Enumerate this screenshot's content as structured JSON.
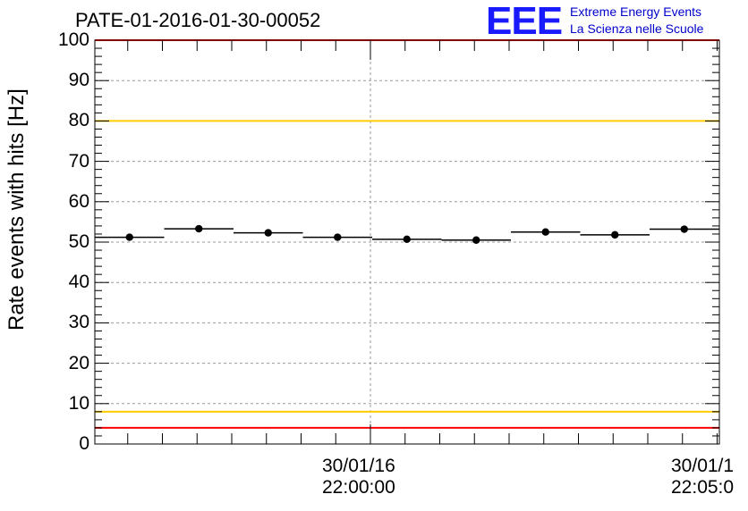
{
  "chart_data": {
    "type": "scatter",
    "title": "PATE-01-2016-01-30-00052",
    "ylabel": "Rate events with hits [Hz]",
    "xlabel": "",
    "ylim": [
      0,
      100
    ],
    "yticks": [
      0,
      10,
      20,
      30,
      40,
      50,
      60,
      70,
      80,
      90,
      100
    ],
    "x_tick_labels": [
      {
        "date": "30/01/16",
        "time": "22:00:00"
      },
      {
        "date": "30/01/1",
        "time": "22:05:0"
      }
    ],
    "grid": true,
    "reference_lines": [
      {
        "value": 100,
        "color": "#ff0000"
      },
      {
        "value": 80,
        "color": "#ffcc00"
      },
      {
        "value": 8,
        "color": "#ffcc00"
      },
      {
        "value": 4,
        "color": "#ff0000"
      }
    ],
    "series": [
      {
        "bin_width_seconds": 60,
        "values": [
          51.2,
          53.3,
          52.3,
          51.2,
          50.7,
          50.5,
          52.5,
          51.8,
          53.2
        ]
      }
    ]
  },
  "logo": {
    "mark": "EEE",
    "line1": "Extreme Energy Events",
    "line2": "La Scienza nelle Scuole"
  }
}
